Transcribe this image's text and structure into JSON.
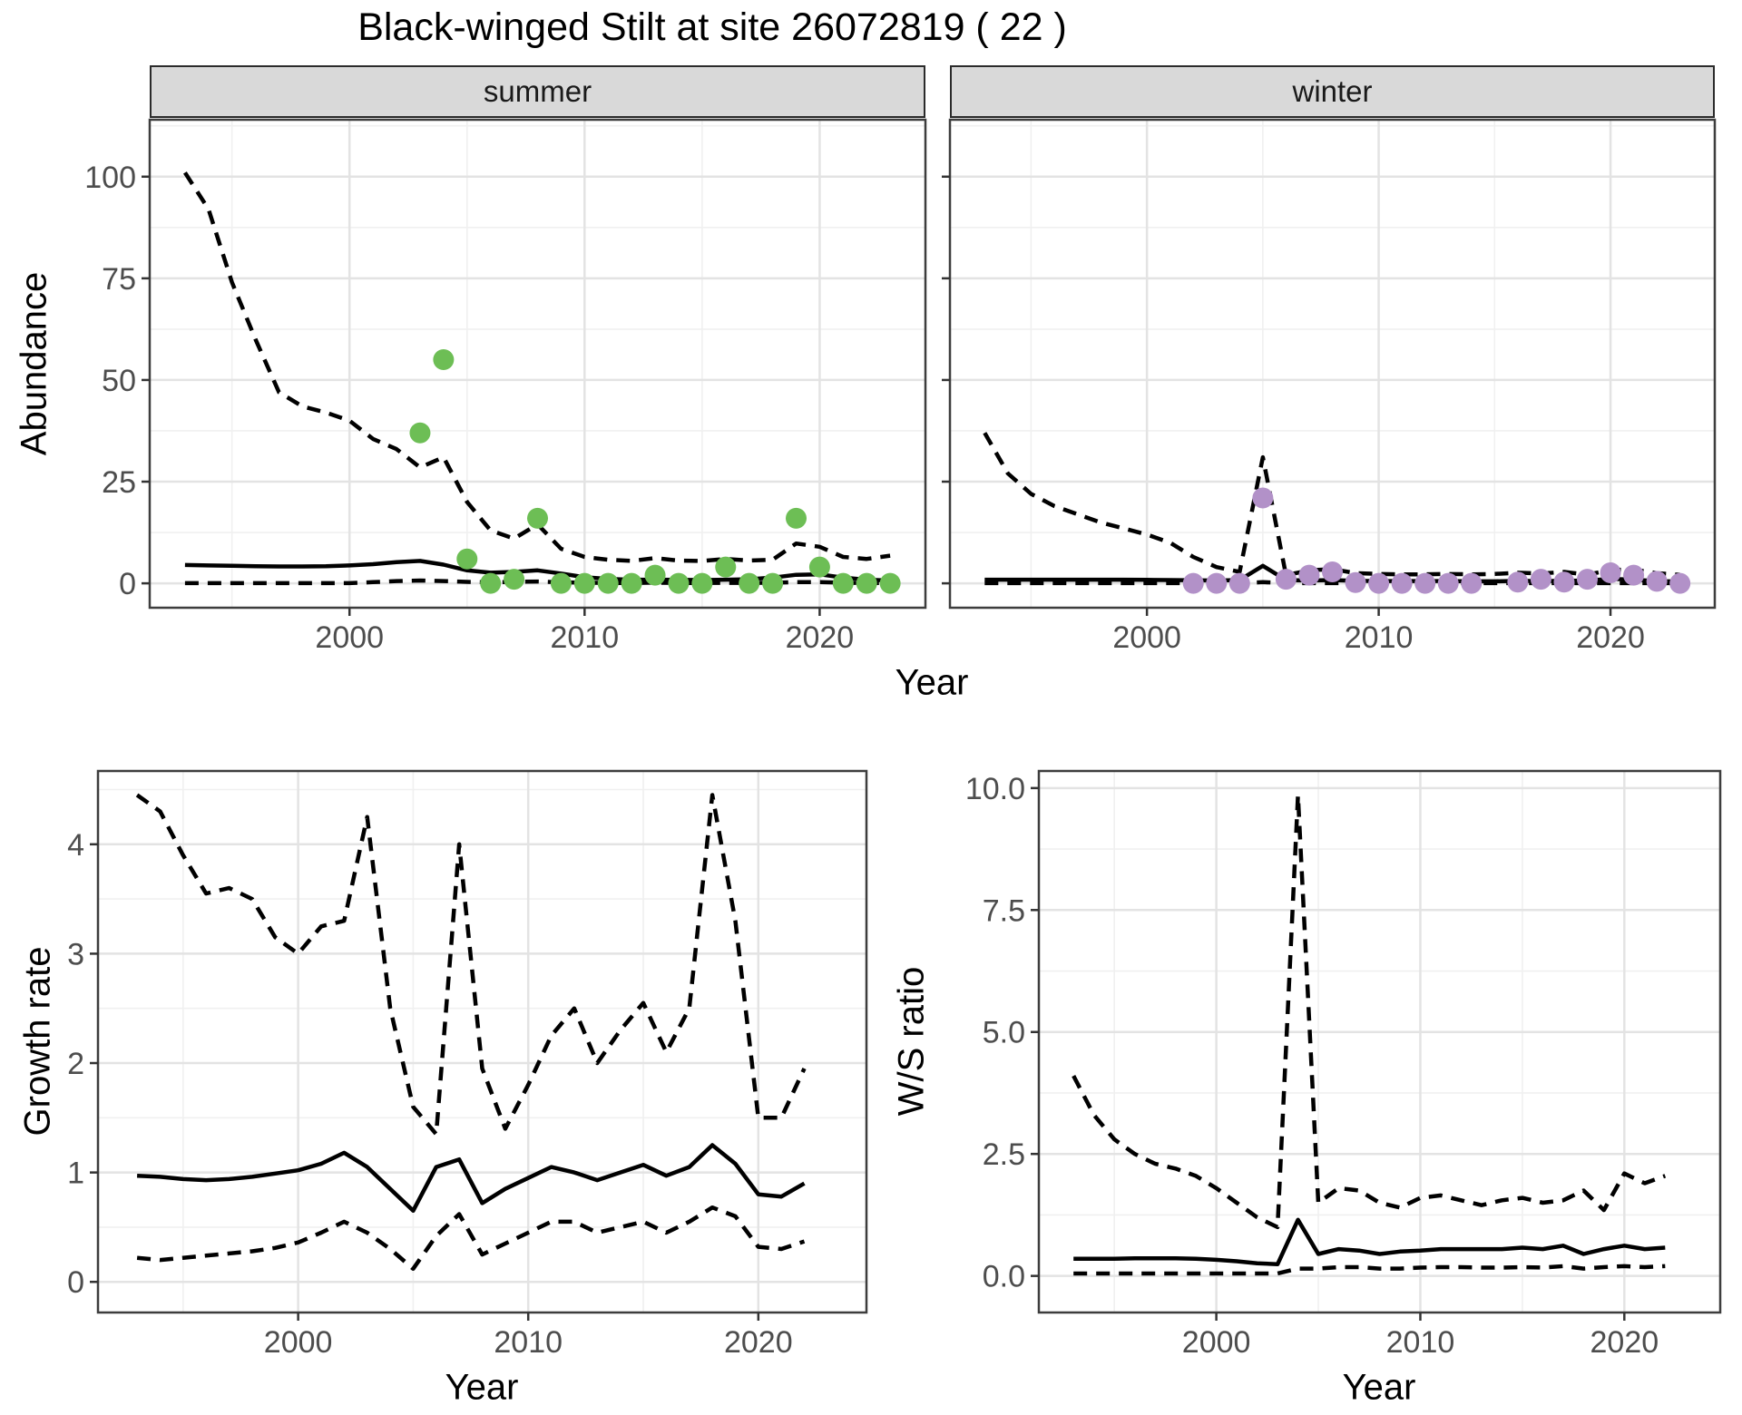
{
  "title": "Black-winged Stilt at site 26072819 ( 22 )",
  "colors": {
    "summer_points": "#6dbe55",
    "winter_points": "#b291c8",
    "line": "#000000",
    "strip_background": "#d9d9d9",
    "major_grid": "#e3e3e3",
    "minor_grid": "#f0f0f0",
    "panel_border": "#3d3d3d",
    "tick_text": "#4d4d4d"
  },
  "chart_data": [
    {
      "id": "abundance-summer",
      "type": "line",
      "facet": "summer",
      "xlabel": "Year",
      "ylabel": "Abundance",
      "xlim": [
        1991.5,
        2024.5
      ],
      "ylim": [
        -6,
        114
      ],
      "x_ticks": [
        2000,
        2010,
        2020
      ],
      "x_tick_labels": [
        "2000",
        "2010",
        "2020"
      ],
      "y_ticks": [
        0,
        25,
        50,
        75,
        100
      ],
      "y_tick_labels": [
        "0",
        "25",
        "50",
        "75",
        "100"
      ],
      "years_start": 1993,
      "series": [
        {
          "name": "upper-95ci",
          "style": "dashed",
          "values": [
            101,
            92,
            74,
            60,
            47,
            43.5,
            42,
            40,
            35.5,
            33,
            28.5,
            31,
            20,
            13,
            11,
            14.5,
            8.5,
            6.5,
            5.8,
            5.5,
            6.2,
            5.6,
            5.5,
            6,
            5.6,
            5.8,
            9.8,
            9,
            6.5,
            6,
            6.8
          ]
        },
        {
          "name": "mean",
          "style": "solid",
          "values": [
            4.5,
            4.4,
            4.3,
            4.2,
            4.15,
            4.15,
            4.2,
            4.4,
            4.7,
            5.2,
            5.5,
            4.6,
            3.2,
            2.6,
            2.8,
            3.2,
            2.4,
            1.5,
            1.1,
            0.9,
            0.9,
            0.85,
            0.8,
            0.9,
            1,
            1.4,
            2.1,
            2.2,
            1.4,
            0.9,
            0.7
          ]
        },
        {
          "name": "lower-95ci",
          "style": "dashed",
          "values": [
            0.05,
            0.05,
            0.05,
            0.05,
            0.05,
            0.05,
            0.05,
            0.05,
            0.3,
            0.55,
            0.7,
            0.55,
            0.35,
            0.25,
            0.35,
            0.45,
            0.25,
            0.15,
            0.1,
            0.1,
            0.15,
            0.1,
            0.1,
            0.12,
            0.12,
            0.15,
            0.3,
            0.3,
            0.15,
            0.1,
            0.1
          ]
        }
      ],
      "points": {
        "name": "observed-counts-summer",
        "color": "#6dbe55",
        "years": [
          2003,
          2004,
          2005,
          2006,
          2007,
          2008,
          2009,
          2010,
          2011,
          2012,
          2013,
          2014,
          2015,
          2016,
          2017,
          2018,
          2019,
          2020,
          2021,
          2022,
          2023
        ],
        "values": [
          37,
          55,
          6,
          0,
          1,
          16,
          0,
          0,
          0,
          0,
          2,
          0,
          0,
          4,
          0,
          0,
          16,
          4,
          0,
          0,
          0
        ]
      }
    },
    {
      "id": "abundance-winter",
      "type": "line",
      "facet": "winter",
      "xlabel": "Year",
      "ylabel": "Abundance",
      "xlim": [
        1991.5,
        2024.5
      ],
      "ylim": [
        -6,
        114
      ],
      "x_ticks": [
        2000,
        2010,
        2020
      ],
      "x_tick_labels": [
        "2000",
        "2010",
        "2020"
      ],
      "y_ticks": [
        0,
        25,
        50,
        75,
        100
      ],
      "y_tick_labels": [
        "0",
        "25",
        "50",
        "75",
        "100"
      ],
      "show_y_labels": false,
      "years_start": 1993,
      "series": [
        {
          "name": "upper-95ci",
          "style": "dashed",
          "values": [
            37,
            27,
            22,
            19,
            17,
            15,
            13.5,
            12,
            10,
            6.5,
            4,
            2.8,
            31,
            2,
            3.2,
            3.5,
            2.5,
            2.3,
            2.2,
            2.2,
            2.3,
            2.2,
            2.3,
            2.6,
            2.4,
            2.8,
            2.1,
            3.3,
            3.4,
            2.5,
            2.1
          ]
        },
        {
          "name": "mean",
          "style": "solid",
          "values": [
            0.9,
            0.9,
            0.9,
            0.9,
            0.9,
            0.9,
            0.9,
            0.85,
            0.8,
            0.75,
            0.7,
            0.8,
            4.3,
            0.8,
            0.7,
            0.8,
            0.6,
            0.55,
            0.55,
            0.55,
            0.55,
            0.5,
            0.5,
            0.6,
            0.55,
            0.6,
            0.7,
            1.1,
            0.9,
            0.55,
            0.45
          ]
        },
        {
          "name": "lower-95ci",
          "style": "dashed",
          "values": [
            0.05,
            0.05,
            0.05,
            0.05,
            0.05,
            0.05,
            0.05,
            0.05,
            0.05,
            0.05,
            0.05,
            0.05,
            0.3,
            0.05,
            0.05,
            0.05,
            0.05,
            0.05,
            0.05,
            0.05,
            0.05,
            0.05,
            0.05,
            0.05,
            0.05,
            0.05,
            0.05,
            0.05,
            0.05,
            0.05,
            0.05
          ]
        }
      ],
      "points": {
        "name": "observed-counts-winter",
        "color": "#b291c8",
        "years": [
          2002,
          2003,
          2004,
          2005,
          2006,
          2007,
          2008,
          2009,
          2010,
          2011,
          2012,
          2013,
          2014,
          2016,
          2017,
          2018,
          2019,
          2020,
          2021,
          2022,
          2023
        ],
        "values": [
          0,
          0,
          0,
          21,
          1,
          2,
          2.8,
          0.2,
          0,
          0,
          0,
          0,
          0,
          0.3,
          1,
          0.3,
          1,
          2.6,
          2,
          0.5,
          0
        ]
      }
    },
    {
      "id": "growth-rate",
      "type": "line",
      "xlabel": "Year",
      "ylabel": "Growth rate",
      "xlim": [
        1991.3,
        2024.7
      ],
      "ylim": [
        -0.28,
        4.67
      ],
      "x_ticks": [
        2000,
        2010,
        2020
      ],
      "x_tick_labels": [
        "2000",
        "2010",
        "2020"
      ],
      "y_ticks": [
        0,
        1,
        2,
        3,
        4
      ],
      "y_tick_labels": [
        "0",
        "1",
        "2",
        "3",
        "4"
      ],
      "years_start": 1993,
      "series": [
        {
          "name": "upper-95ci",
          "style": "dashed",
          "values": [
            4.45,
            4.3,
            3.9,
            3.55,
            3.6,
            3.5,
            3.15,
            3,
            3.25,
            3.3,
            4.25,
            2.5,
            1.6,
            1.35,
            4,
            1.95,
            1.4,
            1.8,
            2.25,
            2.5,
            2,
            2.3,
            2.55,
            2.1,
            2.5,
            4.45,
            3.3,
            1.5,
            1.5,
            1.95
          ]
        },
        {
          "name": "mean",
          "style": "solid",
          "values": [
            0.97,
            0.96,
            0.94,
            0.93,
            0.94,
            0.96,
            0.99,
            1.02,
            1.08,
            1.18,
            1.05,
            0.85,
            0.65,
            1.05,
            1.12,
            0.72,
            0.85,
            0.95,
            1.05,
            1,
            0.93,
            1,
            1.07,
            0.97,
            1.05,
            1.25,
            1.08,
            0.8,
            0.78,
            0.9
          ]
        },
        {
          "name": "lower-95ci",
          "style": "dashed",
          "values": [
            0.22,
            0.2,
            0.22,
            0.24,
            0.26,
            0.28,
            0.31,
            0.36,
            0.45,
            0.55,
            0.45,
            0.3,
            0.12,
            0.42,
            0.62,
            0.25,
            0.35,
            0.45,
            0.55,
            0.55,
            0.45,
            0.5,
            0.55,
            0.45,
            0.55,
            0.68,
            0.6,
            0.32,
            0.3,
            0.37
          ]
        }
      ]
    },
    {
      "id": "ws-ratio",
      "type": "line",
      "xlabel": "Year",
      "ylabel": "W/S ratio",
      "xlim": [
        1991.3,
        2024.7
      ],
      "ylim": [
        -0.75,
        10.35
      ],
      "x_ticks": [
        2000,
        2010,
        2020
      ],
      "x_tick_labels": [
        "2000",
        "2010",
        "2020"
      ],
      "y_ticks": [
        0,
        2.5,
        5,
        7.5,
        10
      ],
      "y_tick_labels": [
        "0.0",
        "2.5",
        "5.0",
        "7.5",
        "10.0"
      ],
      "years_start": 1993,
      "series": [
        {
          "name": "upper-95ci",
          "style": "dashed",
          "values": [
            4.1,
            3.3,
            2.8,
            2.5,
            2.3,
            2.2,
            2.05,
            1.8,
            1.5,
            1.2,
            1,
            9.85,
            1.5,
            1.8,
            1.75,
            1.5,
            1.4,
            1.6,
            1.65,
            1.55,
            1.45,
            1.55,
            1.6,
            1.5,
            1.55,
            1.75,
            1.35,
            2.1,
            1.9,
            2.05
          ]
        },
        {
          "name": "mean",
          "style": "solid",
          "values": [
            0.35,
            0.35,
            0.35,
            0.36,
            0.36,
            0.36,
            0.35,
            0.33,
            0.3,
            0.26,
            0.24,
            1.15,
            0.45,
            0.55,
            0.52,
            0.45,
            0.5,
            0.52,
            0.55,
            0.55,
            0.55,
            0.55,
            0.58,
            0.55,
            0.62,
            0.45,
            0.55,
            0.62,
            0.55,
            0.58
          ]
        },
        {
          "name": "lower-95ci",
          "style": "dashed",
          "values": [
            0.05,
            0.05,
            0.05,
            0.05,
            0.05,
            0.05,
            0.05,
            0.05,
            0.05,
            0.05,
            0.05,
            0.15,
            0.15,
            0.18,
            0.18,
            0.15,
            0.15,
            0.17,
            0.18,
            0.18,
            0.17,
            0.17,
            0.18,
            0.17,
            0.2,
            0.15,
            0.18,
            0.2,
            0.18,
            0.2
          ]
        }
      ]
    }
  ]
}
